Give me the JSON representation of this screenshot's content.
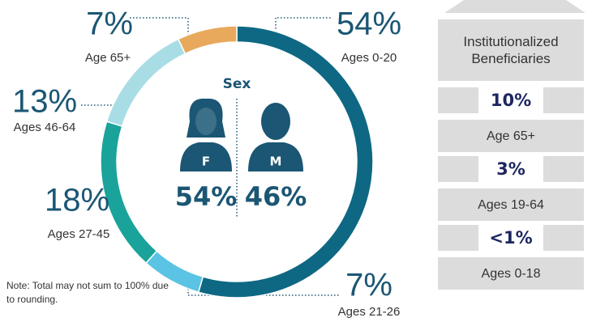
{
  "chart_data": {
    "type": "donut",
    "categories": [
      "Ages 0-20",
      "Ages 21-26",
      "Ages 27-45",
      "Ages 46-64",
      "Age 65+"
    ],
    "values": [
      54,
      7,
      18,
      13,
      7
    ],
    "value_labels": [
      "54%",
      "7%",
      "18%",
      "13%",
      "7%"
    ],
    "colors": [
      "#0e6883",
      "#5bc3e3",
      "#1aa39a",
      "#a9dde6",
      "#e8a95c"
    ],
    "center": {
      "title": "Sex",
      "female": {
        "label": "F",
        "value_label": "54%"
      },
      "male": {
        "label": "M",
        "value_label": "46%"
      }
    },
    "note": "Note: Total may not sum to 100% due to rounding."
  },
  "panel": {
    "title": "Institutionalized Beneficiaries",
    "items": [
      {
        "value_label": "10%",
        "label": "Age 65+"
      },
      {
        "value_label": "3%",
        "label": "Ages 19-64"
      },
      {
        "value_label": "<1%",
        "label": "Ages 0-18"
      }
    ]
  }
}
